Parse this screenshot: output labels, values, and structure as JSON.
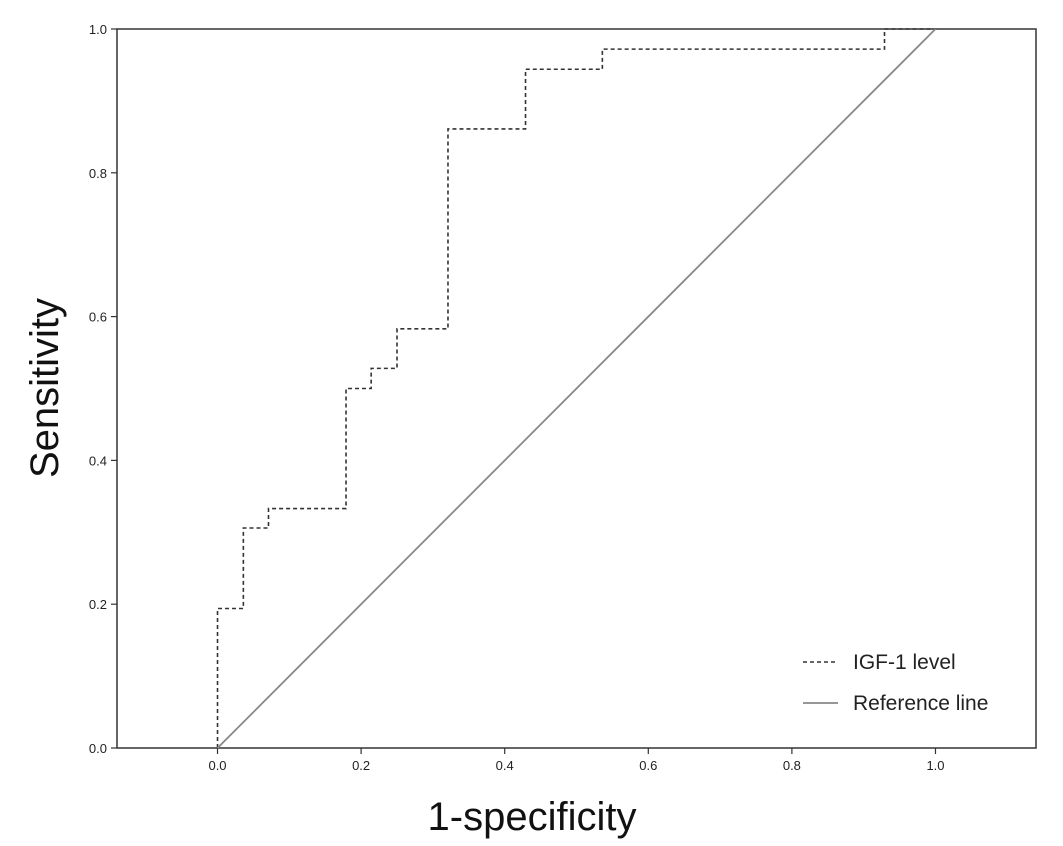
{
  "chart_data": {
    "type": "line",
    "title": "",
    "xlabel": "1-specificity",
    "ylabel": "Sensitivity",
    "xlim": [
      -0.14,
      1.14
    ],
    "ylim": [
      0.0,
      1.0
    ],
    "x_ticks": [
      0.0,
      0.2,
      0.4,
      0.6,
      0.8,
      1.0
    ],
    "y_ticks": [
      0.0,
      0.2,
      0.4,
      0.6,
      0.8,
      1.0
    ],
    "x_tick_labels": [
      "0.0",
      "0.2",
      "0.4",
      "0.6",
      "0.8",
      "1.0"
    ],
    "y_tick_labels": [
      "0.0",
      "0.2",
      "0.4",
      "0.6",
      "0.8",
      "1.0"
    ],
    "grid": false,
    "legend_position": "bottom-right",
    "series": [
      {
        "name": "IGF-1 level",
        "style": "dashed",
        "color": "#333333",
        "x": [
          0.0,
          0.0,
          0.036,
          0.036,
          0.071,
          0.071,
          0.179,
          0.179,
          0.214,
          0.214,
          0.25,
          0.25,
          0.321,
          0.321,
          0.429,
          0.429,
          0.536,
          0.536,
          0.929,
          0.929,
          1.0
        ],
        "y": [
          0.0,
          0.194,
          0.194,
          0.306,
          0.306,
          0.333,
          0.333,
          0.5,
          0.5,
          0.528,
          0.528,
          0.583,
          0.583,
          0.861,
          0.861,
          0.944,
          0.944,
          0.972,
          0.972,
          1.0,
          1.0
        ]
      },
      {
        "name": "Reference line",
        "style": "solid",
        "color": "#888888",
        "x": [
          0.0,
          1.0
        ],
        "y": [
          0.0,
          1.0
        ]
      }
    ]
  }
}
